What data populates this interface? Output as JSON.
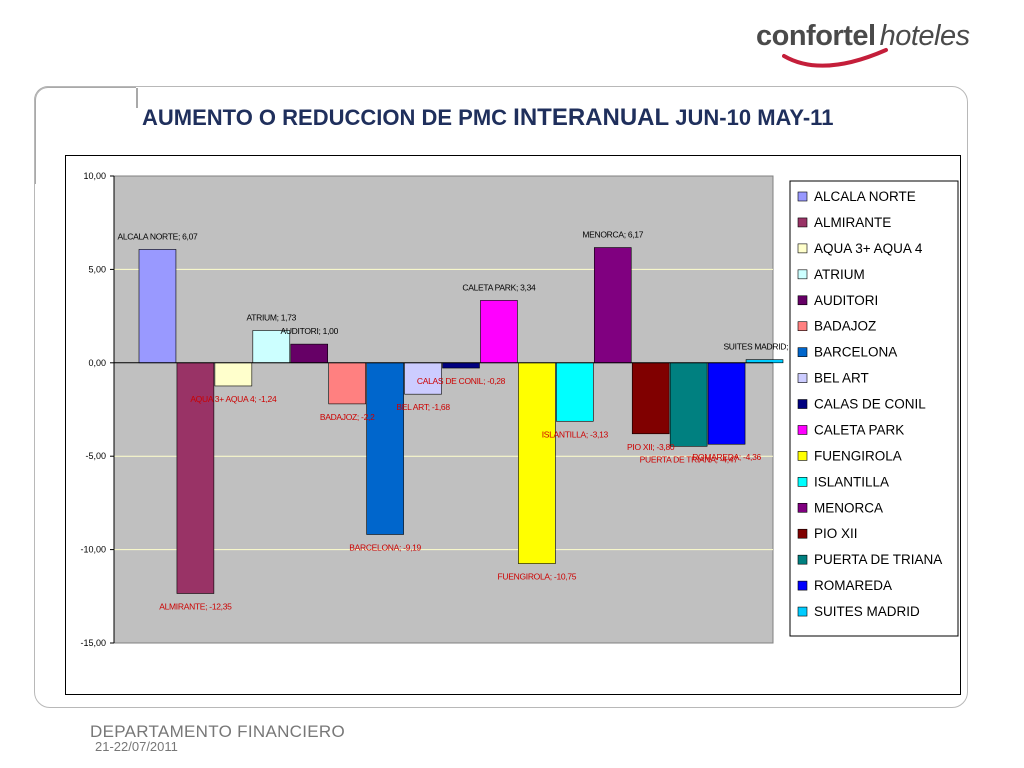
{
  "header": {
    "brand_bold": "confortel",
    "brand_italic": "hoteles",
    "title_part1": "AUMENTO O REDUCCION  DE PMC ",
    "title_part2": "INTERANUAL",
    "title_part3": " JUN-10 MAY-11"
  },
  "footer": {
    "department": "DEPARTAMENTO FINANCIERO",
    "date": "21-22/07/2011"
  },
  "colors": {
    "title": "#1f2f5c",
    "plot_background": "#c0c0c0",
    "label_positive": "#000000",
    "label_negative": "#cc0000"
  },
  "chart_data": {
    "type": "bar",
    "title": "",
    "xlabel": "",
    "ylabel": "",
    "ylim": [
      -15,
      10
    ],
    "ytick_labels": [
      "10,00",
      "5,00",
      "0,00",
      "-5,00",
      "-10,00",
      "-15,00"
    ],
    "yticks": [
      10,
      5,
      0,
      -5,
      -10,
      -15
    ],
    "grid": true,
    "legend_position": "right",
    "series": [
      {
        "name": "ALCALA NORTE",
        "value": 6.07,
        "label": "ALCALA NORTE; 6,07",
        "color": "#9999ff"
      },
      {
        "name": "ALMIRANTE",
        "value": -12.35,
        "label": "ALMIRANTE; -12,35",
        "color": "#993366"
      },
      {
        "name": "AQUA 3+ AQUA 4",
        "value": -1.24,
        "label": "AQUA 3+ AQUA 4; -1,24",
        "color": "#ffffcc"
      },
      {
        "name": "ATRIUM",
        "value": 1.73,
        "label": "ATRIUM; 1,73",
        "color": "#ccffff"
      },
      {
        "name": "AUDITORI",
        "value": 1.0,
        "label": "AUDITORI; 1,00",
        "color": "#660066"
      },
      {
        "name": "BADAJOZ",
        "value": -2.2,
        "label": "BADAJOZ; -2,2",
        "color": "#ff8080"
      },
      {
        "name": "BARCELONA",
        "value": -9.19,
        "label": "BARCELONA; -9,19",
        "color": "#0066cc"
      },
      {
        "name": "BEL ART",
        "value": -1.68,
        "label": "BEL ART; -1,68",
        "color": "#ccccff"
      },
      {
        "name": "CALAS DE CONIL",
        "value": -0.28,
        "label": "CALAS DE CONIL; -0,28",
        "color": "#000080"
      },
      {
        "name": "CALETA PARK",
        "value": 3.34,
        "label": "CALETA PARK; 3,34",
        "color": "#ff00ff"
      },
      {
        "name": "FUENGIROLA",
        "value": -10.75,
        "label": "FUENGIROLA; -10,75",
        "color": "#ffff00"
      },
      {
        "name": "ISLANTILLA",
        "value": -3.13,
        "label": "ISLANTILLA; -3,13",
        "color": "#00ffff"
      },
      {
        "name": "MENORCA",
        "value": 6.17,
        "label": "MENORCA; 6,17",
        "color": "#800080"
      },
      {
        "name": "PIO XII",
        "value": -3.8,
        "label": "PIO XII; -3,80",
        "color": "#800000"
      },
      {
        "name": "PUERTA DE TRIANA",
        "value": -4.47,
        "label": "PUERTA DE TRIANA; -4,47",
        "color": "#008080"
      },
      {
        "name": "ROMAREDA",
        "value": -4.36,
        "label": "ROMAREDA; -4,36",
        "color": "#0000ff"
      },
      {
        "name": "SUITES MADRID",
        "value": 0.17,
        "label": "SUITES MADRID; 0,17",
        "color": "#00ccff"
      }
    ]
  }
}
